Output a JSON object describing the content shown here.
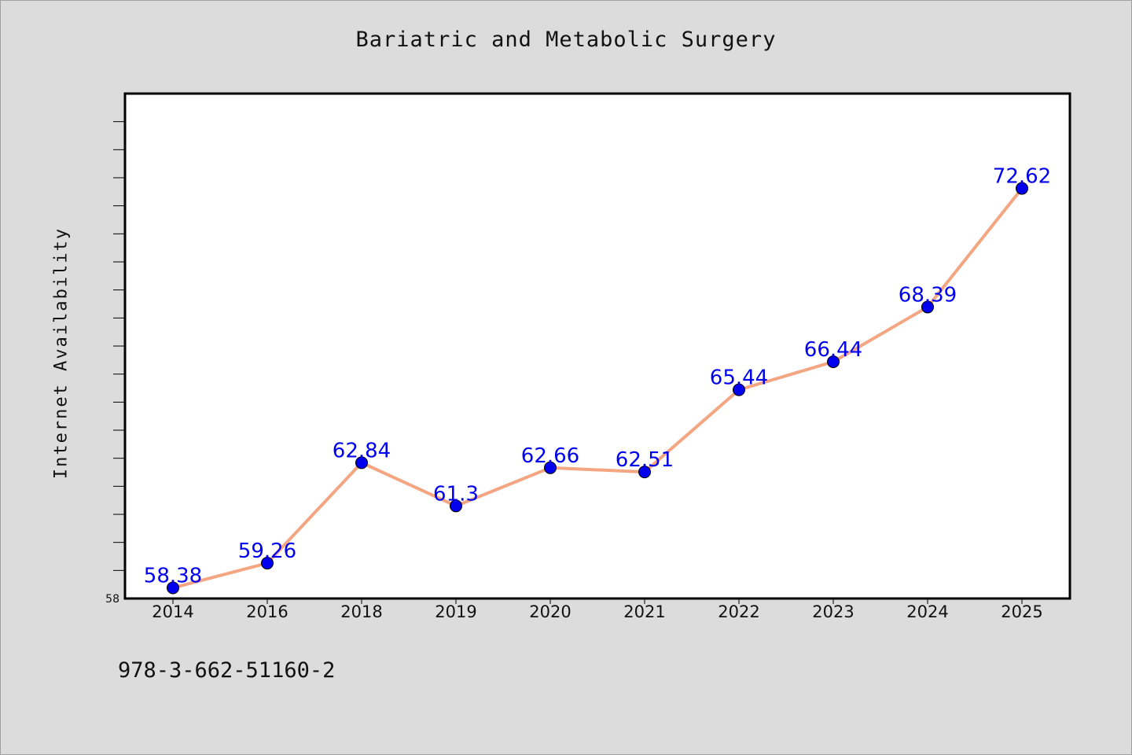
{
  "chart_data": {
    "type": "line",
    "title": "Bariatric and Metabolic Surgery",
    "xlabel": "",
    "ylabel": "Internet Availability",
    "categories": [
      "2014",
      "2016",
      "2018",
      "2019",
      "2020",
      "2021",
      "2022",
      "2023",
      "2024",
      "2025"
    ],
    "values": [
      58.38,
      59.26,
      62.84,
      61.3,
      62.66,
      62.51,
      65.44,
      66.44,
      68.39,
      72.62
    ],
    "data_labels": [
      "58.38",
      "59.26",
      "62.84",
      "61.3",
      "62.66",
      "62.51",
      "65.44",
      "66.44",
      "68.39",
      "72.62"
    ],
    "y_tick_labels": [
      "58"
    ],
    "ylim": [
      58,
      76
    ],
    "grid": false,
    "legend": "none",
    "colors": {
      "line": "#f4a582",
      "marker": "#0000ee",
      "label": "#0000ee"
    }
  },
  "footer": {
    "code": "978-3-662-51160-2"
  }
}
